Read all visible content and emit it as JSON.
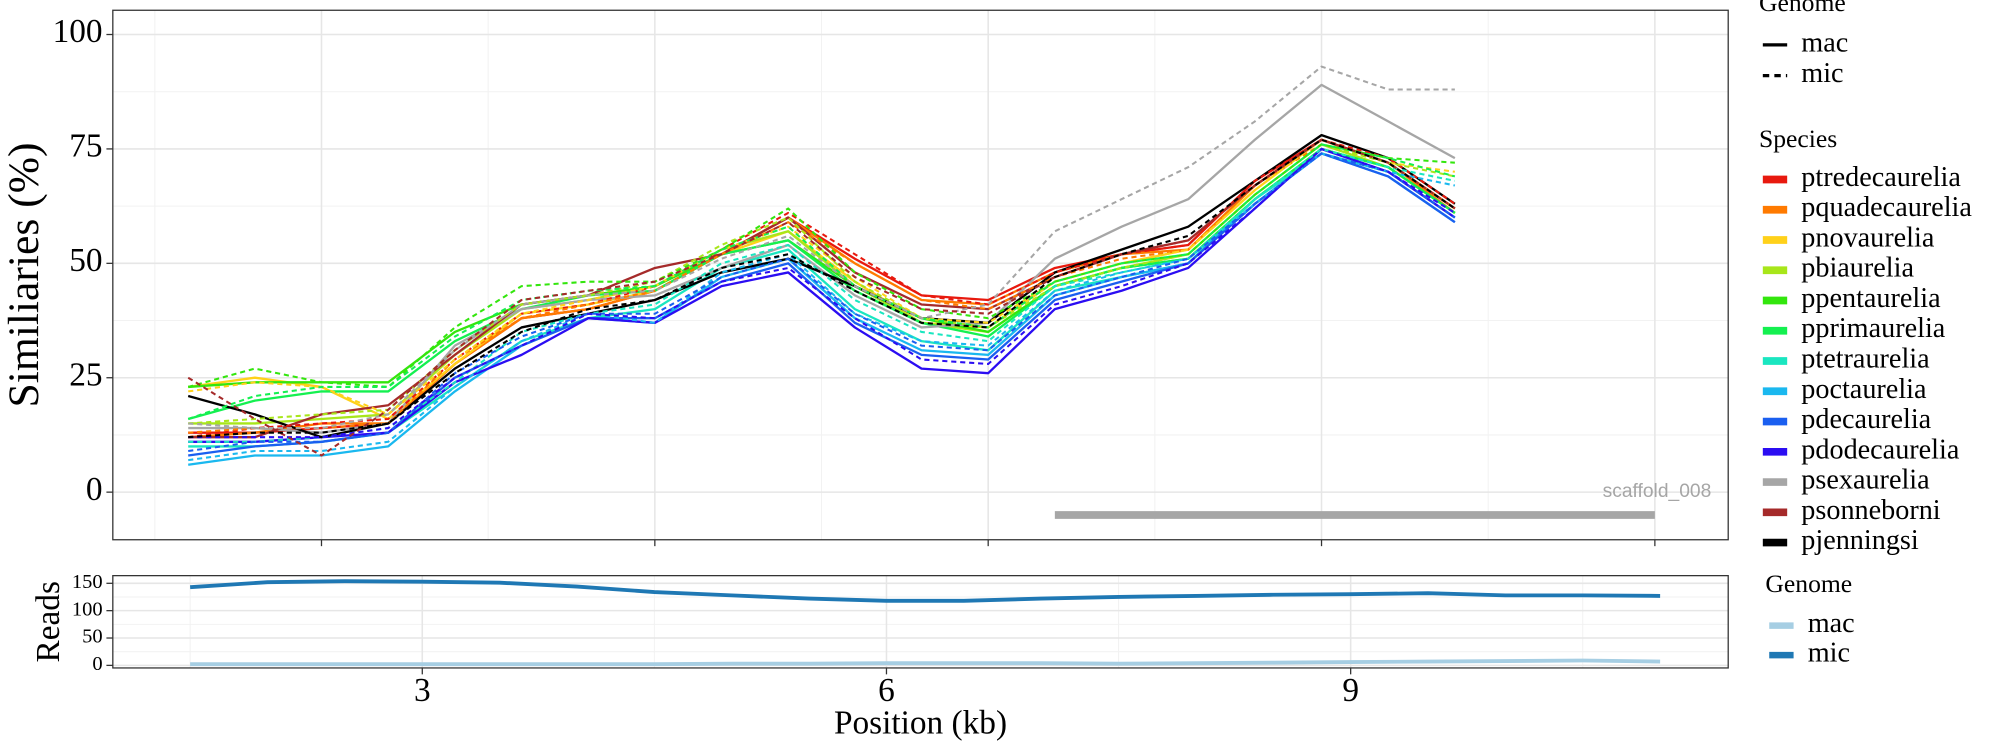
{
  "chart_data": [
    {
      "type": "line",
      "y_label": "Similiaries (%)",
      "x": [
        1,
        2,
        3,
        4,
        5,
        6,
        7,
        8,
        9,
        10,
        11,
        12,
        13,
        14,
        15,
        16,
        17,
        18,
        19,
        20
      ],
      "xlim": [
        -0.13,
        24.1
      ],
      "xticks": [
        3,
        8,
        13,
        18,
        23
      ],
      "ylim": [
        -10.4,
        105.3
      ],
      "yticks": [
        0,
        25,
        50,
        75,
        100
      ],
      "grid": true,
      "genome_legend": {
        "title": "Genome",
        "entries": [
          {
            "name": "mac",
            "linestyle": "solid"
          },
          {
            "name": "mic",
            "linestyle": "dashed"
          }
        ]
      },
      "species_legend_title": "Species",
      "annotations": [
        {
          "text": "scaffold_008",
          "x": [
            14,
            23
          ],
          "y": -5,
          "color": "#a6a6a6"
        }
      ],
      "series": [
        {
          "name": "ptredecaurelia",
          "genome": "mac",
          "color": "#e8190e",
          "values": [
            13,
            13,
            14,
            15,
            28,
            38,
            40,
            44,
            52,
            60,
            51,
            43,
            42,
            49,
            52,
            54,
            68,
            77,
            72,
            62
          ]
        },
        {
          "name": "pquadecaurelia",
          "genome": "mac",
          "color": "#ff7a00",
          "values": [
            12,
            13,
            15,
            15,
            28,
            38,
            40,
            44,
            52,
            60,
            50,
            42,
            41,
            48,
            52,
            53,
            67,
            77,
            72,
            61
          ]
        },
        {
          "name": "pnovaurelia",
          "genome": "mac",
          "color": "#ffd11a",
          "values": [
            23,
            25,
            23,
            16,
            28,
            39,
            41,
            44,
            52,
            57,
            46,
            37,
            36,
            46,
            50,
            53,
            66,
            77,
            72,
            62
          ]
        },
        {
          "name": "pbiaurelia",
          "genome": "mac",
          "color": "#a8e61a",
          "values": [
            15,
            15,
            16,
            17,
            30,
            40,
            42,
            45,
            53,
            57,
            45,
            37,
            35,
            45,
            49,
            52,
            65,
            76,
            71,
            61
          ]
        },
        {
          "name": "ppentaurelia",
          "genome": "mac",
          "color": "#33e60d",
          "values": [
            23,
            24,
            24,
            24,
            35,
            41,
            43,
            45,
            52,
            55,
            45,
            38,
            35,
            45,
            49,
            51,
            64,
            75,
            71,
            61
          ]
        },
        {
          "name": "pprimaurelia",
          "genome": "mac",
          "color": "#14f050",
          "values": [
            16,
            20,
            22,
            22,
            33,
            40,
            43,
            44,
            52,
            55,
            44,
            37,
            34,
            45,
            49,
            51,
            64,
            75,
            71,
            61
          ]
        },
        {
          "name": "ptetraurelia",
          "genome": "mac",
          "color": "#1ae6c0",
          "values": [
            10,
            10,
            11,
            13,
            23,
            33,
            38,
            40,
            49,
            53,
            40,
            33,
            31,
            44,
            47,
            50,
            64,
            74,
            70,
            60
          ]
        },
        {
          "name": "poctaurelia",
          "genome": "mac",
          "color": "#1ab8ef",
          "values": [
            6,
            8,
            8,
            10,
            22,
            32,
            38,
            37,
            47,
            51,
            38,
            31,
            30,
            43,
            47,
            50,
            63,
            74,
            69,
            59
          ]
        },
        {
          "name": "pdecaurelia",
          "genome": "mac",
          "color": "#1a5ff0",
          "values": [
            8,
            10,
            11,
            13,
            25,
            32,
            38,
            38,
            46,
            50,
            37,
            30,
            29,
            42,
            46,
            50,
            63,
            74,
            69,
            59
          ]
        },
        {
          "name": "pdodecaurelia",
          "genome": "mac",
          "color": "#2b0df2",
          "values": [
            11,
            11,
            12,
            13,
            24,
            30,
            38,
            37,
            45,
            48,
            36,
            27,
            26,
            40,
            44,
            49,
            62,
            75,
            70,
            60
          ]
        },
        {
          "name": "psexaurelia",
          "genome": "mac",
          "color": "#a6a6a6",
          "values": [
            14,
            14,
            13,
            15,
            32,
            40,
            42,
            43,
            49,
            54,
            43,
            36,
            37,
            51,
            58,
            64,
            77,
            89,
            81,
            73
          ]
        },
        {
          "name": "psonneborni",
          "genome": "mac",
          "color": "#a52a2a",
          "values": [
            12,
            12,
            17,
            19,
            30,
            41,
            43,
            49,
            52,
            60,
            48,
            41,
            40,
            47,
            52,
            55,
            67,
            77,
            72,
            62
          ]
        },
        {
          "name": "pjenningsi",
          "genome": "mac",
          "color": "#000000",
          "values": [
            21,
            17,
            12,
            15,
            27,
            36,
            39,
            42,
            48,
            51,
            45,
            38,
            37,
            48,
            53,
            58,
            68,
            78,
            73,
            63
          ]
        },
        {
          "name": "ptredecaurelia",
          "genome": "mic",
          "color": "#e8190e",
          "values": [
            12,
            14,
            15,
            16,
            29,
            39,
            41,
            45,
            53,
            61,
            52,
            43,
            41,
            48,
            52,
            54,
            68,
            77,
            73,
            63
          ]
        },
        {
          "name": "pquadecaurelia",
          "genome": "mic",
          "color": "#ff7a00",
          "values": [
            13,
            14,
            14,
            15,
            29,
            38,
            41,
            44,
            52,
            59,
            50,
            42,
            40,
            47,
            51,
            53,
            67,
            76,
            72,
            62
          ]
        },
        {
          "name": "pnovaurelia",
          "genome": "mic",
          "color": "#ffd11a",
          "values": [
            22,
            24,
            23,
            17,
            29,
            39,
            42,
            45,
            53,
            58,
            47,
            38,
            37,
            46,
            50,
            53,
            66,
            77,
            72,
            70
          ]
        },
        {
          "name": "pbiaurelia",
          "genome": "mic",
          "color": "#a8e61a",
          "values": [
            15,
            16,
            17,
            18,
            31,
            41,
            43,
            46,
            54,
            60,
            46,
            38,
            36,
            45,
            49,
            52,
            65,
            76,
            72,
            69
          ]
        },
        {
          "name": "ppentaurelia",
          "genome": "mic",
          "color": "#33e60d",
          "values": [
            23,
            27,
            24,
            23,
            36,
            45,
            46,
            46,
            53,
            62,
            48,
            40,
            38,
            46,
            50,
            52,
            65,
            76,
            73,
            72
          ]
        },
        {
          "name": "pprimaurelia",
          "genome": "mic",
          "color": "#14f050",
          "values": [
            16,
            21,
            23,
            23,
            34,
            42,
            44,
            45,
            53,
            58,
            45,
            38,
            36,
            46,
            50,
            52,
            65,
            76,
            73,
            69
          ]
        },
        {
          "name": "ptetraurelia",
          "genome": "mic",
          "color": "#1ae6c0",
          "values": [
            11,
            11,
            12,
            14,
            24,
            35,
            39,
            41,
            50,
            54,
            42,
            35,
            33,
            45,
            48,
            51,
            64,
            75,
            71,
            68
          ]
        },
        {
          "name": "poctaurelia",
          "genome": "mic",
          "color": "#1ab8ef",
          "values": [
            7,
            9,
            9,
            11,
            23,
            33,
            39,
            37,
            48,
            52,
            39,
            33,
            32,
            44,
            48,
            51,
            63,
            74,
            70,
            67
          ]
        },
        {
          "name": "pdecaurelia",
          "genome": "mic",
          "color": "#1a5ff0",
          "values": [
            9,
            11,
            11,
            13,
            26,
            34,
            39,
            39,
            47,
            51,
            39,
            32,
            31,
            43,
            47,
            51,
            63,
            74,
            70,
            60
          ]
        },
        {
          "name": "pdodecaurelia",
          "genome": "mic",
          "color": "#2b0df2",
          "values": [
            12,
            12,
            12,
            14,
            25,
            32,
            39,
            38,
            46,
            49,
            38,
            29,
            28,
            41,
            45,
            50,
            62,
            75,
            70,
            61
          ]
        },
        {
          "name": "psexaurelia",
          "genome": "mic",
          "color": "#a6a6a6",
          "values": [
            15,
            14,
            14,
            17,
            31,
            41,
            43,
            44,
            51,
            56,
            45,
            38,
            41,
            57,
            64,
            71,
            81,
            93,
            88,
            88
          ]
        },
        {
          "name": "psonneborni",
          "genome": "mic",
          "color": "#a52a2a",
          "values": [
            25,
            16,
            8,
            18,
            31,
            42,
            44,
            46,
            52,
            59,
            47,
            40,
            39,
            47,
            52,
            55,
            67,
            77,
            72,
            62
          ]
        },
        {
          "name": "pjenningsi",
          "genome": "mic",
          "color": "#000000",
          "values": [
            12,
            13,
            13,
            15,
            26,
            35,
            40,
            42,
            49,
            52,
            44,
            37,
            36,
            47,
            52,
            56,
            67,
            77,
            72,
            62
          ]
        }
      ]
    },
    {
      "type": "line",
      "x_label": "Position (kb)",
      "y_label": "Reads",
      "x": [
        1.5,
        2,
        2.5,
        3,
        3.5,
        4,
        4.5,
        5,
        5.5,
        6,
        6.5,
        7,
        7.5,
        8,
        8.5,
        9,
        9.5,
        10,
        10.5,
        11
      ],
      "xlim": [
        1.0,
        11.44
      ],
      "xticks": [
        3,
        6,
        9
      ],
      "ylim": [
        -4.7,
        164
      ],
      "yticks": [
        0,
        50,
        100,
        150
      ],
      "grid": true,
      "legend_title": "Genome",
      "series": [
        {
          "name": "mac",
          "color": "#a6cee3",
          "values": [
            2,
            2,
            2,
            2,
            2,
            2,
            2,
            3,
            3,
            4,
            4,
            4,
            3,
            4,
            5,
            6,
            7,
            8,
            9,
            7
          ]
        },
        {
          "name": "mic",
          "color": "#1f78b4",
          "values": [
            143,
            152,
            154,
            153,
            151,
            144,
            134,
            128,
            122,
            118,
            118,
            122,
            125,
            127,
            129,
            130,
            132,
            128,
            128,
            127
          ]
        }
      ]
    }
  ]
}
